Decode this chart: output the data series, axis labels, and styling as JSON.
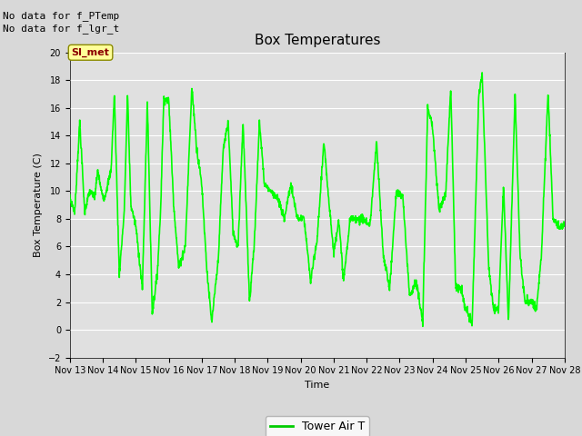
{
  "title": "Box Temperatures",
  "xlabel": "Time",
  "ylabel": "Box Temperature (C)",
  "ylim": [
    -2,
    20
  ],
  "yticks": [
    -2,
    0,
    2,
    4,
    6,
    8,
    10,
    12,
    14,
    16,
    18,
    20
  ],
  "line_color": "#00FF00",
  "line_width": 1.2,
  "bg_color": "#D8D8D8",
  "plot_bg_color": "#E0E0E0",
  "grid_color": "#FFFFFF",
  "no_data_text1": "No data for f_PTemp",
  "no_data_text2": "No data for f_lgr_t",
  "legend_label": "Tower Air T",
  "legend_line_color": "#00CC00",
  "si_met_label": "SI_met",
  "x_tick_labels": [
    "Nov 13",
    "Nov 14",
    "Nov 15",
    "Nov 16",
    "Nov 17",
    "Nov 18",
    "Nov 19",
    "Nov 20",
    "Nov 21",
    "Nov 22",
    "Nov 23",
    "Nov 24",
    "Nov 25",
    "Nov 26",
    "Nov 27",
    "Nov 28"
  ],
  "font_size_ticks": 7,
  "font_size_title": 11,
  "font_size_axis": 8,
  "font_size_legend": 9,
  "font_size_nodata": 8,
  "font_size_simet": 8
}
